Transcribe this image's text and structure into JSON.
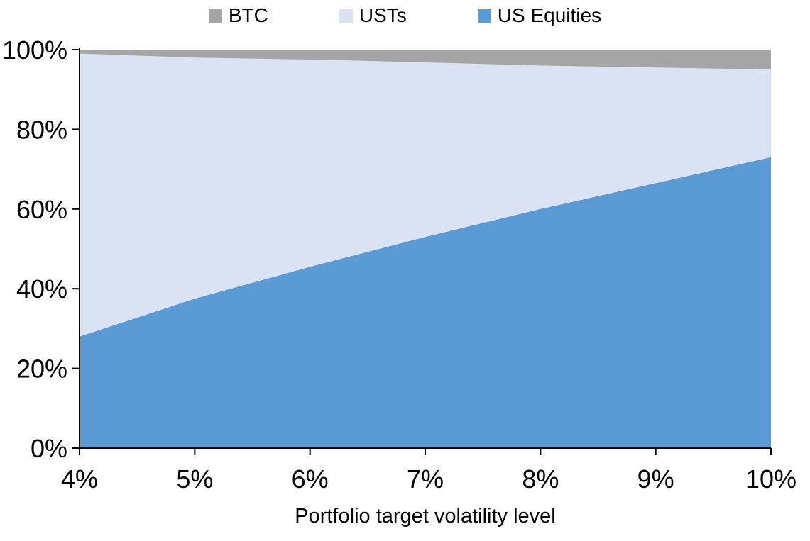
{
  "chart_data": {
    "type": "area",
    "stacked": true,
    "xlabel": "Portfolio target volatility level",
    "ylabel": "",
    "x": [
      4,
      5,
      6,
      7,
      8,
      9,
      10
    ],
    "x_tick_labels": [
      "4%",
      "5%",
      "6%",
      "7%",
      "8%",
      "9%",
      "10%"
    ],
    "xlim": [
      4,
      10
    ],
    "y_ticks": [
      0,
      20,
      40,
      60,
      80,
      100
    ],
    "y_tick_labels": [
      "0%",
      "20%",
      "40%",
      "60%",
      "80%",
      "100%"
    ],
    "ylim": [
      0,
      100
    ],
    "grid": false,
    "legend_position": "top",
    "series": [
      {
        "name": "US Equities",
        "color": "#5B9BD5",
        "values": [
          28,
          37.5,
          45.5,
          53,
          60,
          66.5,
          73
        ]
      },
      {
        "name": "USTs",
        "color": "#DAE3F3",
        "values": [
          71,
          60.5,
          52,
          43.8,
          36,
          29,
          22
        ]
      },
      {
        "name": "BTC",
        "color": "#A5A5A5",
        "values": [
          1,
          2,
          2.5,
          3.2,
          4,
          4.5,
          5
        ]
      }
    ]
  },
  "legend": {
    "items": [
      {
        "label": "BTC",
        "color": "#A5A5A5"
      },
      {
        "label": "USTs",
        "color": "#DAE3F3"
      },
      {
        "label": "US Equities",
        "color": "#5B9BD5"
      }
    ]
  },
  "colors": {
    "axis": "#000000",
    "text": "#000000",
    "background": "#FFFFFF"
  }
}
